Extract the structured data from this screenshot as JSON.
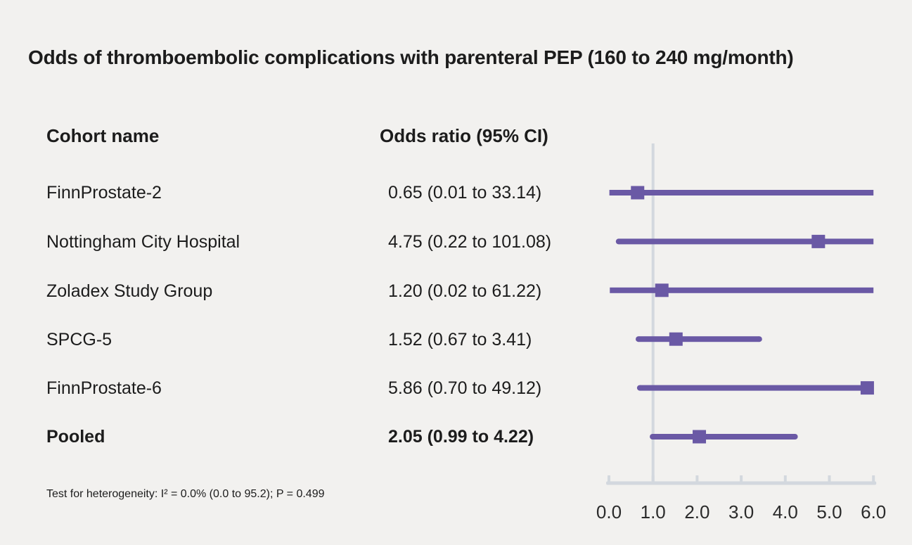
{
  "title": "Odds of thromboembolic complications with parenteral PEP (160 to 240 mg/month)",
  "columns": {
    "cohort": "Cohort name",
    "odds": "Odds ratio (95% CI)"
  },
  "rows": [
    {
      "name": "FinnProstate-2",
      "value": "0.65 (0.01 to 33.14)"
    },
    {
      "name": "Nottingham City Hospital",
      "value": "4.75 (0.22 to 101.08)"
    },
    {
      "name": "Zoladex Study Group",
      "value": "1.20 (0.02 to 61.22)"
    },
    {
      "name": "SPCG-5",
      "value": "1.52 (0.67 to 3.41)"
    },
    {
      "name": "FinnProstate-6",
      "value": "5.86 (0.70 to 49.12)"
    },
    {
      "name": "Pooled",
      "value": "2.05 (0.99 to 4.22)"
    }
  ],
  "footnote": "Test for heterogeneity: I² = 0.0% (0.0 to 95.2); P = 0.499",
  "chart_data": {
    "type": "forest",
    "title": "Odds of thromboembolic complications with parenteral PEP (160 to 240 mg/month)",
    "xlabel": "Odds ratio (95% CI)",
    "axis": {
      "min": 0,
      "max": 6,
      "ticks": [
        0,
        1,
        2,
        3,
        4,
        5,
        6
      ],
      "tick_labels": [
        "0.0",
        "1.0",
        "2.0",
        "3.0",
        "4.0",
        "5.0",
        "6.0"
      ]
    },
    "reference_line": 1.0,
    "points": [
      {
        "label": "FinnProstate-2",
        "or": 0.65,
        "ci_low": 0.01,
        "ci_high": 33.14,
        "pooled": false
      },
      {
        "label": "Nottingham City Hospital",
        "or": 4.75,
        "ci_low": 0.22,
        "ci_high": 101.08,
        "pooled": false
      },
      {
        "label": "Zoladex Study Group",
        "or": 1.2,
        "ci_low": 0.02,
        "ci_high": 61.22,
        "pooled": false
      },
      {
        "label": "SPCG-5",
        "or": 1.52,
        "ci_low": 0.67,
        "ci_high": 3.41,
        "pooled": false
      },
      {
        "label": "FinnProstate-6",
        "or": 5.86,
        "ci_low": 0.7,
        "ci_high": 49.12,
        "pooled": false
      },
      {
        "label": "Pooled",
        "or": 2.05,
        "ci_low": 0.99,
        "ci_high": 4.22,
        "pooled": true
      }
    ],
    "heterogeneity": "Test for heterogeneity: I² = 0.0% (0.0 to 95.2); P = 0.499"
  },
  "colors": {
    "marker": "#6a59a5",
    "axis_line": "#d3d8de",
    "background": "#f2f1ef",
    "text": "#1c1c1c",
    "tick_label_text": "#2b2b2b"
  }
}
